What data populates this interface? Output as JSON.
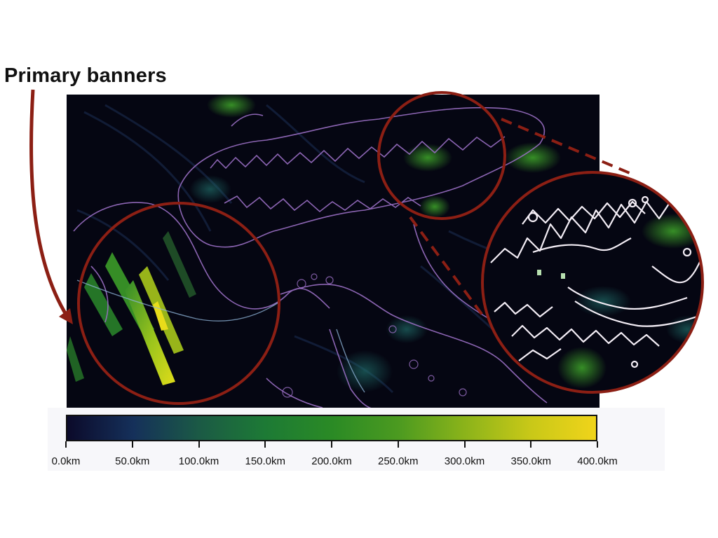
{
  "annotation": {
    "label": "Primary banners"
  },
  "colorbar": {
    "unit": "km",
    "tick_labels": [
      "0.0km",
      "50.0km",
      "100.0km",
      "150.0km",
      "200.0km",
      "250.0km",
      "300.0km",
      "350.0km",
      "400.0km"
    ],
    "colors": [
      "#0b0a2a",
      "#15305a",
      "#1b5a45",
      "#1d7a35",
      "#2a8a25",
      "#4b9a20",
      "#8ab31a",
      "#c8c818",
      "#f0d41a"
    ]
  },
  "colors": {
    "map_background": "#050612",
    "coastline": "#9a6fc4",
    "highlight_ring": "#8c1f14",
    "zoom_contour": "#f4eef6",
    "banner_green": "#3fa62a",
    "banner_yellow": "#d8e01a"
  }
}
